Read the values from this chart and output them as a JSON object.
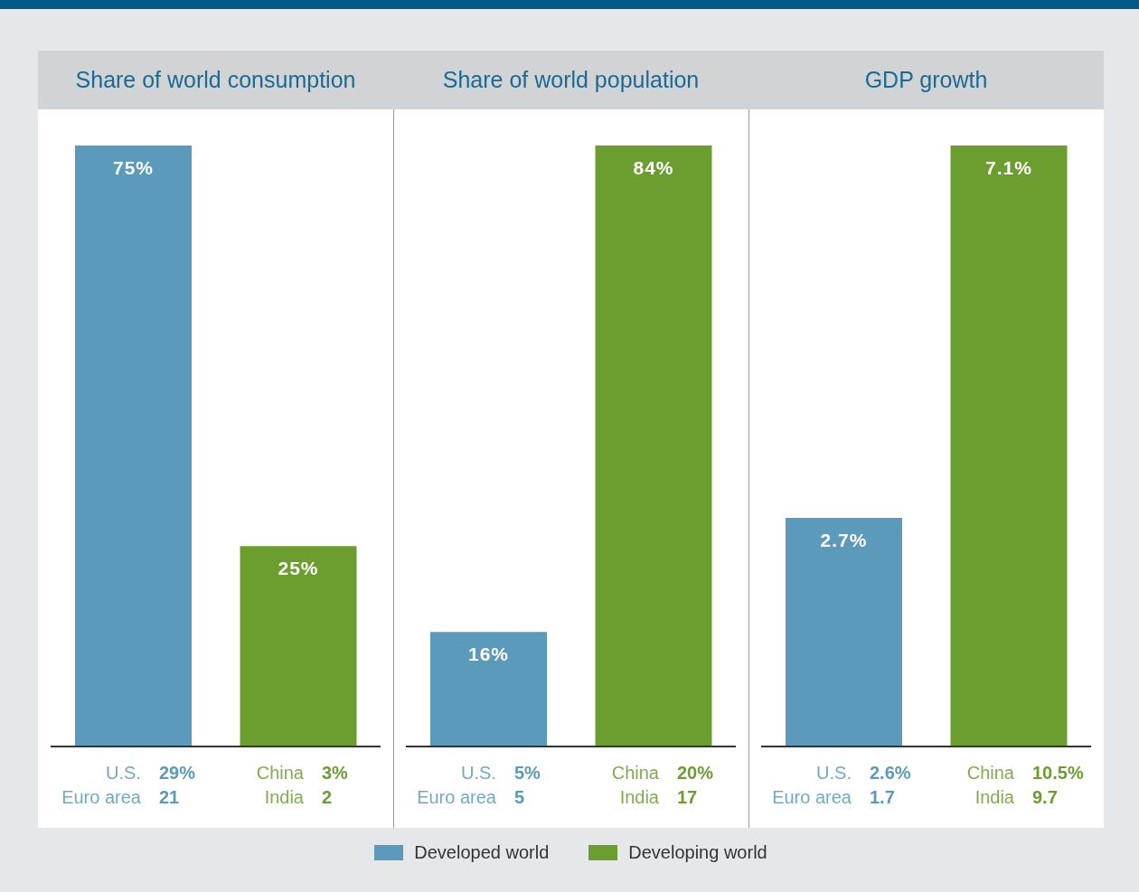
{
  "chart_data": [
    {
      "type": "bar",
      "title": "Share of world consumption",
      "categories": [
        null,
        null
      ],
      "stacked": true,
      "data_labels": true,
      "series": [
        {
          "color": "#5b9aba",
          "values": [
            75,
            null
          ],
          "value_labels": [
            "75%",
            null
          ]
        },
        {
          "color": "#6b9e2f",
          "values": [
            null,
            25
          ],
          "value_labels": [
            null,
            "25%"
          ]
        }
      ],
      "annotations": [
        "U.S.",
        "29%",
        "Euro area",
        "21",
        "China",
        "3%",
        "India",
        "2"
      ]
    },
    {
      "type": "bar",
      "title": "Share of world population",
      "categories": [
        null,
        null
      ],
      "stacked": true,
      "data_labels": true,
      "legend": "bottom",
      "series": [
        {
          "name": "Developed world",
          "color": "#5b9aba",
          "values": [
            16,
            null
          ],
          "value_labels": [
            "16%",
            null
          ]
        },
        {
          "name": "Developing world",
          "color": "#6b9e2f",
          "values": [
            null,
            84
          ],
          "value_labels": [
            null,
            "84%"
          ]
        }
      ],
      "annotations": [
        "U.S.",
        "5%",
        "Euro area",
        "5",
        "China",
        "20%",
        "India",
        "17"
      ]
    },
    {
      "type": "bar",
      "title": "GDP growth",
      "categories": [
        null,
        null
      ],
      "stacked": true,
      "data_labels": true,
      "series": [
        {
          "color": "#5b9aba",
          "values": [
            2.7,
            null
          ],
          "value_labels": [
            "2.7%",
            null
          ]
        },
        {
          "color": "#6b9e2f",
          "values": [
            null,
            7.1
          ],
          "value_labels": [
            null,
            "7.1%"
          ]
        }
      ],
      "annotations": [
        "U.S.",
        "2.6%",
        "Euro area",
        "1.7",
        "China",
        "10.5%",
        "India",
        "9.7"
      ]
    }
  ]
}
